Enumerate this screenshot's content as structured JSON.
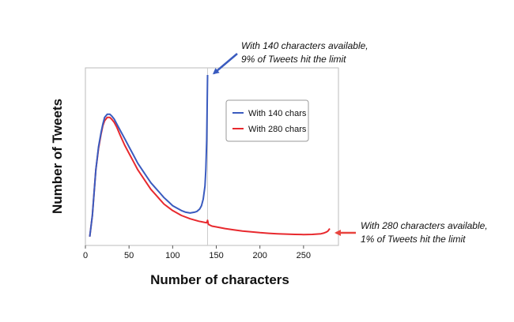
{
  "chart_data": {
    "type": "line",
    "xlabel": "Number of characters",
    "ylabel": "Number of Tweets",
    "xlim": [
      0,
      290
    ],
    "ylim": [
      0,
      1
    ],
    "x_ticks": [
      0,
      50,
      100,
      150,
      200,
      250
    ],
    "y_ticks": [],
    "grid": false,
    "legend": {
      "position": "top-right",
      "entries": [
        {
          "label": "With 140 chars",
          "color": "#3a5bbf"
        },
        {
          "label": "With 280 chars",
          "color": "#e8292e"
        }
      ]
    },
    "series": [
      {
        "name": "With 140 chars",
        "color": "#3a5bbf",
        "x": [
          5,
          8,
          10,
          12,
          15,
          18,
          20,
          22,
          25,
          28,
          30,
          33,
          36,
          40,
          45,
          50,
          55,
          60,
          65,
          70,
          75,
          80,
          85,
          90,
          95,
          100,
          105,
          110,
          115,
          120,
          125,
          128,
          131,
          133,
          135,
          137,
          138,
          139,
          140
        ],
        "values": [
          0.01,
          0.14,
          0.28,
          0.42,
          0.56,
          0.65,
          0.7,
          0.74,
          0.76,
          0.76,
          0.75,
          0.73,
          0.7,
          0.66,
          0.61,
          0.56,
          0.51,
          0.46,
          0.42,
          0.38,
          0.34,
          0.31,
          0.28,
          0.25,
          0.225,
          0.2,
          0.185,
          0.17,
          0.16,
          0.155,
          0.16,
          0.165,
          0.18,
          0.2,
          0.24,
          0.32,
          0.42,
          0.6,
          1.0
        ]
      },
      {
        "name": "With 280 chars",
        "color": "#e8292e",
        "x": [
          5,
          8,
          10,
          12,
          15,
          18,
          20,
          22,
          25,
          28,
          30,
          33,
          36,
          40,
          45,
          50,
          55,
          60,
          65,
          70,
          75,
          80,
          85,
          90,
          95,
          100,
          110,
          120,
          130,
          139,
          140,
          141,
          145,
          150,
          160,
          170,
          180,
          190,
          200,
          210,
          220,
          230,
          240,
          250,
          260,
          265,
          270,
          273,
          276,
          278,
          280
        ],
        "values": [
          0.01,
          0.14,
          0.28,
          0.42,
          0.55,
          0.64,
          0.69,
          0.72,
          0.74,
          0.74,
          0.73,
          0.71,
          0.68,
          0.63,
          0.57,
          0.52,
          0.47,
          0.42,
          0.38,
          0.34,
          0.3,
          0.27,
          0.24,
          0.21,
          0.19,
          0.17,
          0.14,
          0.12,
          0.105,
          0.095,
          0.11,
          0.085,
          0.075,
          0.07,
          0.06,
          0.052,
          0.045,
          0.04,
          0.035,
          0.031,
          0.028,
          0.026,
          0.024,
          0.023,
          0.024,
          0.026,
          0.028,
          0.032,
          0.038,
          0.045,
          0.06
        ]
      }
    ],
    "annotations": [
      {
        "id": "top",
        "lines": [
          "With 140 characters available,",
          "9% of Tweets hit the limit"
        ],
        "color": "#3a5bbf",
        "target_x": 140,
        "target_y": 1.0
      },
      {
        "id": "bottom",
        "lines": [
          "With 280 characters available,",
          "1% of Tweets hit the limit"
        ],
        "color": "#e8443e",
        "target_x": 280,
        "target_y": 0.05
      }
    ]
  }
}
